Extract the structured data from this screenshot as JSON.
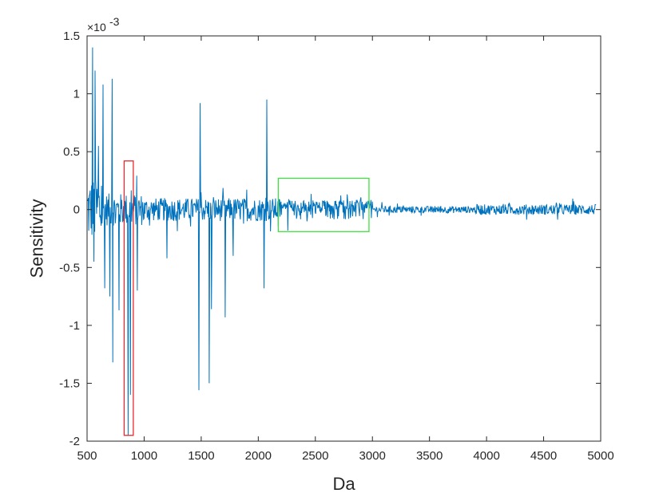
{
  "chart_data": {
    "type": "line",
    "xlabel": "Da",
    "ylabel": "Sensitivity",
    "y_multiplier_label": "×10",
    "y_multiplier_exponent": "-3",
    "xlim": [
      500,
      5000
    ],
    "ylim": [
      -2,
      1.5
    ],
    "xticks": [
      500,
      1000,
      1500,
      2000,
      2500,
      3000,
      3500,
      4000,
      4500,
      5000
    ],
    "xtick_labels": [
      "500",
      "1000",
      "1500",
      "2000",
      "2500",
      "3000",
      "3500",
      "4000",
      "4500",
      "5000"
    ],
    "yticks": [
      1.5,
      1,
      0.5,
      0,
      -0.5,
      -1,
      -1.5,
      -2
    ],
    "ytick_labels": [
      "1.5",
      "1",
      "0.5",
      "0",
      "-0.5",
      "-1",
      "-1.5",
      "-2"
    ],
    "grid": false,
    "box": true,
    "series": [
      {
        "color": "#0072bd",
        "notable_peaks": [
          {
            "x": 548,
            "y": 1.4
          },
          {
            "x": 560,
            "y": 1.35
          },
          {
            "x": 570,
            "y": 1.2
          },
          {
            "x": 600,
            "y": 0.55
          },
          {
            "x": 640,
            "y": 1.08
          },
          {
            "x": 720,
            "y": 1.13
          },
          {
            "x": 1490,
            "y": 0.92
          },
          {
            "x": 2075,
            "y": 0.95
          },
          {
            "x": 560,
            "y": -0.45
          },
          {
            "x": 655,
            "y": -0.68
          },
          {
            "x": 700,
            "y": -0.75
          },
          {
            "x": 725,
            "y": -1.32
          },
          {
            "x": 780,
            "y": -0.87
          },
          {
            "x": 860,
            "y": -1.95
          },
          {
            "x": 880,
            "y": -1.6
          },
          {
            "x": 940,
            "y": -0.7
          },
          {
            "x": 1200,
            "y": -0.42
          },
          {
            "x": 1480,
            "y": -1.56
          },
          {
            "x": 1570,
            "y": -1.5
          },
          {
            "x": 1590,
            "y": -0.86
          },
          {
            "x": 1710,
            "y": -0.93
          },
          {
            "x": 1780,
            "y": -0.4
          },
          {
            "x": 2050,
            "y": -0.68
          }
        ]
      }
    ],
    "annotations": [
      {
        "shape": "rectangle",
        "color": "#e8292f",
        "x_range": [
          825,
          905
        ],
        "y_range": [
          -1.95,
          0.42
        ]
      },
      {
        "shape": "rectangle",
        "color": "#3ee23e",
        "x_range": [
          2175,
          2970
        ],
        "y_range": [
          -0.19,
          0.27
        ]
      }
    ]
  }
}
